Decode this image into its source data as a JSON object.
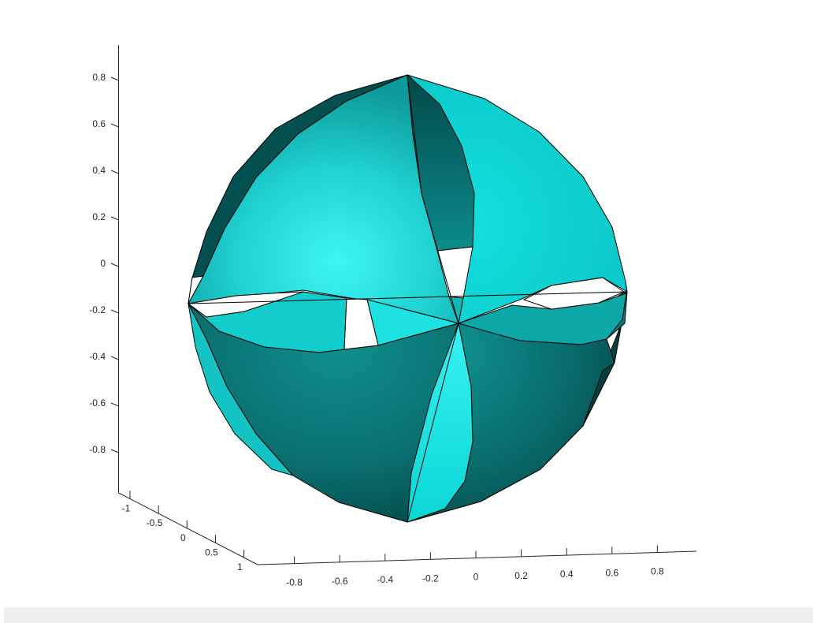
{
  "chart_data": {
    "type": "surface",
    "title": "",
    "xlabel": "",
    "ylabel": "",
    "zlabel": "",
    "grid": false,
    "view": "3-D perspective (default azimuth/elevation)",
    "surface": "unit sphere split into eight petals, each twisted about its axis",
    "color": "#00FFFF",
    "edge_color": "#000000",
    "lighting": "Gouraud shading",
    "x_ticks": [
      "-0.8",
      "-0.6",
      "-0.4",
      "-0.2",
      "0",
      "0.2",
      "0.4",
      "0.6",
      "0.8"
    ],
    "y_ticks": [
      "-1",
      "-0.5",
      "0",
      "0.5",
      "1"
    ],
    "z_ticks": [
      "0.8",
      "0.6",
      "0.4",
      "0.2",
      "0",
      "-0.2",
      "-0.4",
      "-0.6",
      "-0.8"
    ],
    "xlim": [
      -1,
      1
    ],
    "ylim": [
      -1,
      1
    ],
    "zlim": [
      -1,
      1
    ]
  }
}
